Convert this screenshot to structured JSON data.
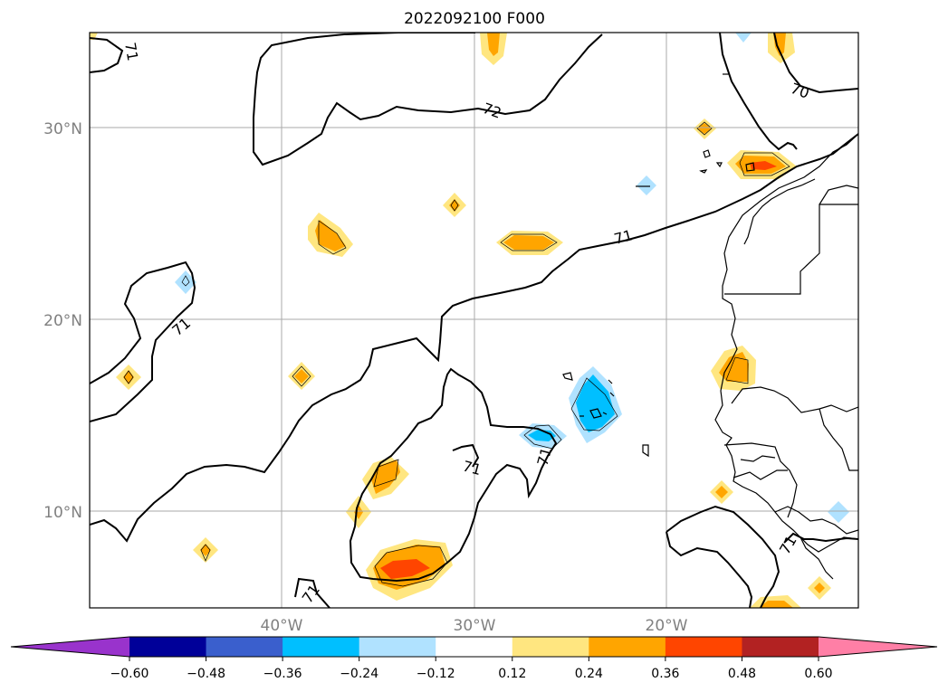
{
  "title": "2022092100 F000",
  "map": {
    "lat_labels": [
      "30°N",
      "20°N",
      "10°N"
    ],
    "lon_labels": [
      "40°W",
      "30°W",
      "20°W"
    ],
    "grid_lat": [
      30,
      20,
      10
    ],
    "grid_lon": [
      -40,
      -30,
      -20
    ],
    "extent": {
      "lon_min": -50,
      "lon_max": -10,
      "lat_min": 5,
      "lat_max": 35
    },
    "contour_labels": [
      "71",
      "72",
      "70",
      "71",
      "71",
      "71",
      "71",
      "71",
      "71"
    ]
  },
  "colorbar": {
    "ticks": [
      "−0.60",
      "−0.48",
      "−0.36",
      "−0.24",
      "−0.12",
      "0.12",
      "0.24",
      "0.36",
      "0.48",
      "0.60"
    ],
    "colors": [
      "#9933cc",
      "#000099",
      "#3a5fcd",
      "#00bfff",
      "#b0e2ff",
      "#ffffff",
      "#ffe680",
      "#ffa500",
      "#ff4500",
      "#b22222",
      "#ff7fa6"
    ],
    "extend": "both"
  }
}
